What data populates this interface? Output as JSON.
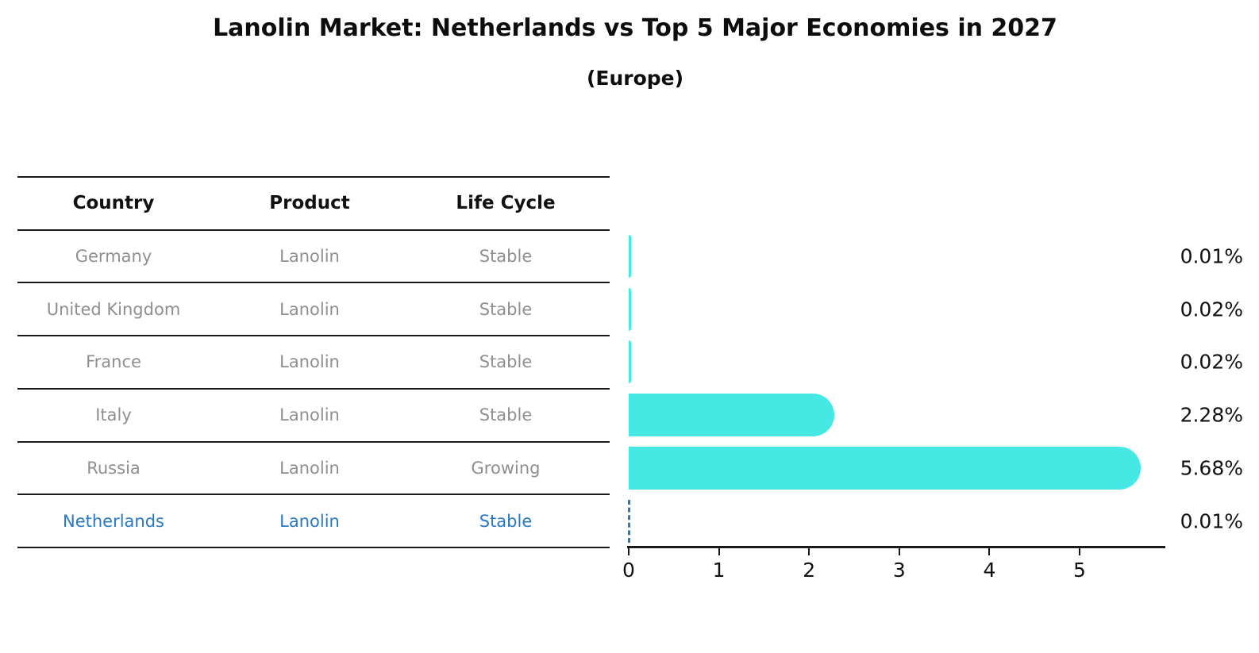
{
  "title": "Lanolin Market: Netherlands vs Top 5 Major Economies in 2027",
  "subtitle": "(Europe)",
  "table": {
    "headers": [
      "Country",
      "Product",
      "Life Cycle"
    ],
    "rows": [
      {
        "country": "Germany",
        "product": "Lanolin",
        "life_cycle": "Stable",
        "value": 0.01,
        "value_label": "0.01%",
        "highlight": false
      },
      {
        "country": "United Kingdom",
        "product": "Lanolin",
        "life_cycle": "Stable",
        "value": 0.02,
        "value_label": "0.02%",
        "highlight": false
      },
      {
        "country": "France",
        "product": "Lanolin",
        "life_cycle": "Stable",
        "value": 0.02,
        "value_label": "0.02%",
        "highlight": false
      },
      {
        "country": "Italy",
        "product": "Lanolin",
        "life_cycle": "Stable",
        "value": 2.28,
        "value_label": "2.28%",
        "highlight": false
      },
      {
        "country": "Russia",
        "product": "Lanolin",
        "life_cycle": "Growing",
        "value": 5.68,
        "value_label": "5.68%",
        "highlight": false
      },
      {
        "country": "Netherlands",
        "product": "Lanolin",
        "life_cycle": "Stable",
        "value": 0.01,
        "value_label": "0.01%",
        "highlight": true
      }
    ]
  },
  "chart_data": {
    "type": "bar",
    "orientation": "horizontal",
    "title": "Lanolin Market: Netherlands vs Top 5 Major Economies in 2027",
    "subtitle": "(Europe)",
    "categories": [
      "Germany",
      "United Kingdom",
      "France",
      "Italy",
      "Russia",
      "Netherlands"
    ],
    "values": [
      0.01,
      0.02,
      0.02,
      2.28,
      5.68,
      0.01
    ],
    "value_labels": [
      "0.01%",
      "0.02%",
      "0.02%",
      "2.28%",
      "5.68%",
      "0.01%"
    ],
    "unit": "%",
    "xlabel": "",
    "ylabel": "",
    "xlim": [
      0,
      5.95
    ],
    "xticks": [
      "0",
      "1",
      "2",
      "3",
      "4",
      "5"
    ],
    "grid": false,
    "legend": false,
    "highlight_category": "Netherlands",
    "highlight_style": "dashed-line",
    "bar_color": "#46e8e4",
    "highlight_color": "#2878c8"
  },
  "colors": {
    "bar": "#46e8e4",
    "highlight": "#2878c8",
    "table_text": "#8f8f8f",
    "header_text": "#111111",
    "line": "#1a1a1a",
    "background": "#ffffff"
  }
}
